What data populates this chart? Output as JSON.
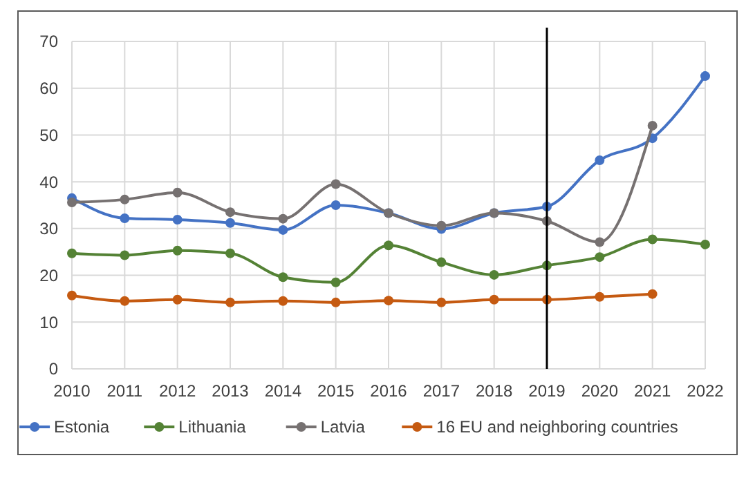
{
  "chart_data": {
    "type": "line",
    "x": [
      2010,
      2011,
      2012,
      2013,
      2014,
      2015,
      2016,
      2017,
      2018,
      2019,
      2020,
      2021,
      2022
    ],
    "series": [
      {
        "name": "Estonia",
        "color": "#4472c4",
        "values": [
          36.5,
          32.2,
          31.9,
          31.2,
          29.7,
          35.0,
          33.3,
          29.9,
          33.3,
          34.7,
          44.6,
          49.3,
          62.6
        ]
      },
      {
        "name": "Lithuania",
        "color": "#548235",
        "values": [
          24.7,
          24.3,
          25.3,
          24.7,
          19.6,
          18.5,
          26.4,
          22.8,
          20.1,
          22.1,
          23.9,
          27.7,
          26.6
        ]
      },
      {
        "name": "Latvia",
        "color": "#767171",
        "values": [
          35.6,
          36.2,
          37.7,
          33.5,
          32.1,
          39.5,
          33.3,
          30.6,
          33.3,
          31.6,
          27.1,
          52.0,
          null
        ]
      },
      {
        "name": "16 EU and neighboring countries",
        "color": "#c55a11",
        "values": [
          15.7,
          14.5,
          14.8,
          14.2,
          14.5,
          14.2,
          14.6,
          14.2,
          14.8,
          14.8,
          15.4,
          16.0,
          null
        ]
      }
    ],
    "xlim": [
      2010,
      2022
    ],
    "xticks": [
      2010,
      2011,
      2012,
      2013,
      2014,
      2015,
      2016,
      2017,
      2018,
      2019,
      2020,
      2021,
      2022
    ],
    "ylim": [
      0,
      70
    ],
    "yticks": [
      0,
      10,
      20,
      30,
      40,
      50,
      60,
      70
    ],
    "ref_lines": [
      {
        "axis": "x",
        "value": 2019,
        "color": "#000000"
      }
    ],
    "grid": true,
    "legend": "bottom",
    "marker": "circle",
    "line_style": "solid"
  }
}
